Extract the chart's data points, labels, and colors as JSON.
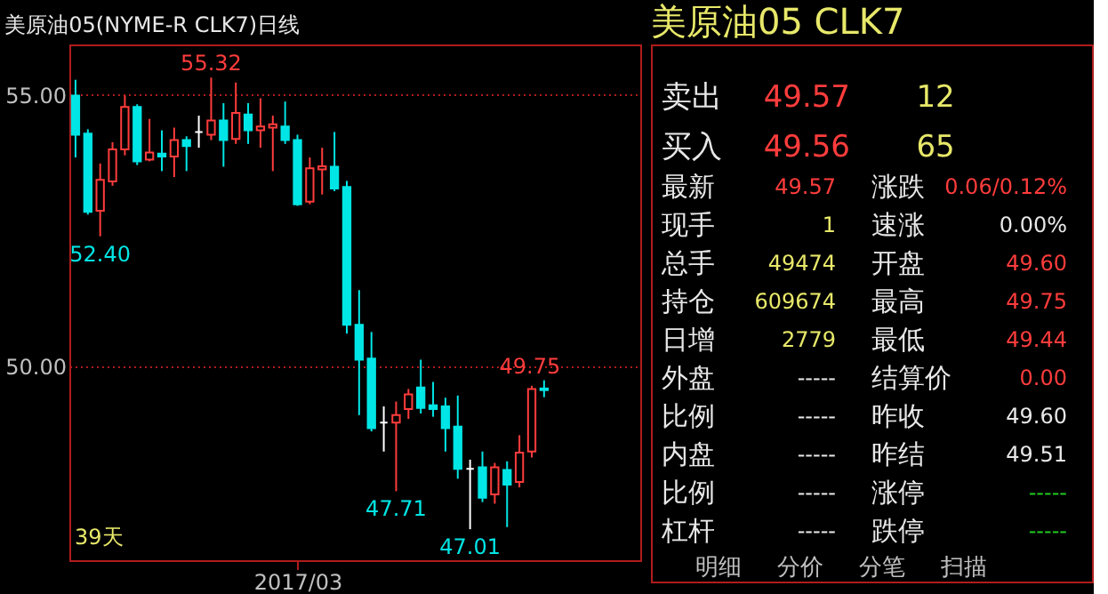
{
  "chart_data": [
    {
      "type": "candlestick",
      "title": "美原油05(NYME-R CLK7)日线",
      "categories": [
        null,
        null,
        null,
        null,
        null,
        null,
        null,
        null,
        null,
        null,
        null,
        null,
        null,
        null,
        null,
        null,
        null,
        null,
        "2017/03",
        null,
        null,
        null,
        null,
        null,
        null,
        null,
        null,
        null,
        null,
        null,
        null,
        null,
        null,
        null,
        null,
        null,
        null,
        null,
        null
      ],
      "ohlc": [
        [
          54.99,
          55.28,
          53.85,
          54.27
        ],
        [
          54.29,
          54.37,
          52.8,
          52.85
        ],
        [
          52.87,
          53.74,
          52.4,
          53.44
        ],
        [
          53.41,
          54.13,
          53.33,
          54.0
        ],
        [
          54.0,
          54.99,
          53.89,
          54.78
        ],
        [
          54.78,
          54.83,
          53.71,
          53.78
        ],
        [
          53.81,
          54.56,
          53.78,
          53.94
        ],
        [
          53.92,
          54.35,
          53.6,
          53.87
        ],
        [
          53.87,
          54.4,
          53.49,
          54.17
        ],
        [
          54.17,
          54.24,
          53.6,
          54.06
        ],
        [
          54.32,
          54.62,
          54.03,
          54.32
        ],
        [
          54.27,
          55.32,
          54.17,
          54.53
        ],
        [
          54.53,
          54.85,
          53.68,
          54.17
        ],
        [
          54.19,
          55.23,
          54.1,
          54.67
        ],
        [
          54.64,
          54.85,
          54.1,
          54.35
        ],
        [
          54.35,
          54.94,
          54.03,
          54.42
        ],
        [
          54.4,
          54.62,
          53.6,
          54.46
        ],
        [
          54.42,
          54.88,
          54.1,
          54.17
        ],
        [
          54.17,
          54.27,
          52.96,
          52.99
        ],
        [
          53.04,
          53.85,
          52.99,
          53.65
        ],
        [
          53.63,
          54.03,
          53.17,
          53.69
        ],
        [
          53.68,
          54.32,
          53.23,
          53.28
        ],
        [
          53.31,
          53.42,
          50.61,
          50.77
        ],
        [
          50.77,
          51.41,
          49.11,
          50.13
        ],
        [
          50.15,
          50.64,
          48.81,
          48.87
        ],
        [
          48.97,
          49.27,
          48.44,
          48.97
        ],
        [
          48.97,
          49.36,
          47.71,
          49.11
        ],
        [
          49.22,
          49.59,
          49.04,
          49.49
        ],
        [
          49.62,
          50.13,
          49.14,
          49.24
        ],
        [
          49.29,
          49.72,
          49.08,
          49.22
        ],
        [
          49.27,
          49.43,
          48.44,
          48.87
        ],
        [
          48.9,
          49.47,
          47.94,
          48.12
        ],
        [
          48.12,
          48.29,
          47.01,
          48.12
        ],
        [
          48.15,
          48.44,
          47.51,
          47.59
        ],
        [
          47.65,
          48.23,
          47.48,
          48.15
        ],
        [
          48.1,
          48.26,
          47.05,
          47.83
        ],
        [
          47.88,
          48.74,
          47.78,
          48.42
        ],
        [
          48.44,
          49.65,
          48.33,
          49.59
        ],
        [
          49.6,
          49.75,
          49.44,
          49.57
        ]
      ],
      "colors": [
        "#00e5e5",
        "#00e5e5",
        "#ff3c3c",
        "#ff3c3c",
        "#ff3c3c",
        "#00e5e5",
        "#ff3c3c",
        "#00e5e5",
        "#ff3c3c",
        "#00e5e5",
        "#ffffff",
        "#ff3c3c",
        "#00e5e5",
        "#ff3c3c",
        "#00e5e5",
        "#ff3c3c",
        "#ff3c3c",
        "#00e5e5",
        "#00e5e5",
        "#ff3c3c",
        "#ff3c3c",
        "#00e5e5",
        "#00e5e5",
        "#00e5e5",
        "#00e5e5",
        "#ffffff",
        "#ff3c3c",
        "#ff3c3c",
        "#00e5e5",
        "#00e5e5",
        "#00e5e5",
        "#00e5e5",
        "#ffffff",
        "#00e5e5",
        "#ff3c3c",
        "#00e5e5",
        "#ff3c3c",
        "#ff3c3c",
        "#00e5e5"
      ],
      "ylim": [
        46.44,
        55.93
      ],
      "yticks": [
        {
          "value": 55,
          "label": "55.00"
        },
        {
          "value": 50,
          "label": "50.00"
        }
      ],
      "grid": "y",
      "annotations": [
        {
          "text": "55.32",
          "y": 55.32
        },
        {
          "text": "52.40",
          "y": 52.4
        },
        {
          "text": "47.71",
          "y": 47.71
        },
        {
          "text": "47.01",
          "y": 47.01
        },
        {
          "text": "49.75",
          "y": 49.75
        },
        "39天"
      ]
    },
    {
      "type": "other",
      "title": "美原油05  CLK7",
      "annotations": [
        "卖出",
        "49.57",
        "12",
        "买入",
        "49.56",
        "65",
        "最新",
        "49.57",
        "涨跌",
        "0.06/0.12%",
        "现手",
        "1",
        "速涨",
        "0.00%",
        "总手",
        "49474",
        "开盘",
        "49.60",
        "持仓",
        "609674",
        "最高",
        "49.75",
        "日增",
        "2779",
        "最低",
        "49.44",
        "外盘",
        "-----",
        "结算价",
        "0.00",
        "比例",
        "-----",
        "昨收",
        "49.60",
        "内盘",
        "-----",
        "昨结",
        "49.51",
        "比例",
        "-----",
        "涨停",
        "-----",
        "杠杆",
        "-----",
        "跌停",
        "-----",
        "明细",
        "分价",
        "分笔",
        "扫描"
      ]
    }
  ]
}
